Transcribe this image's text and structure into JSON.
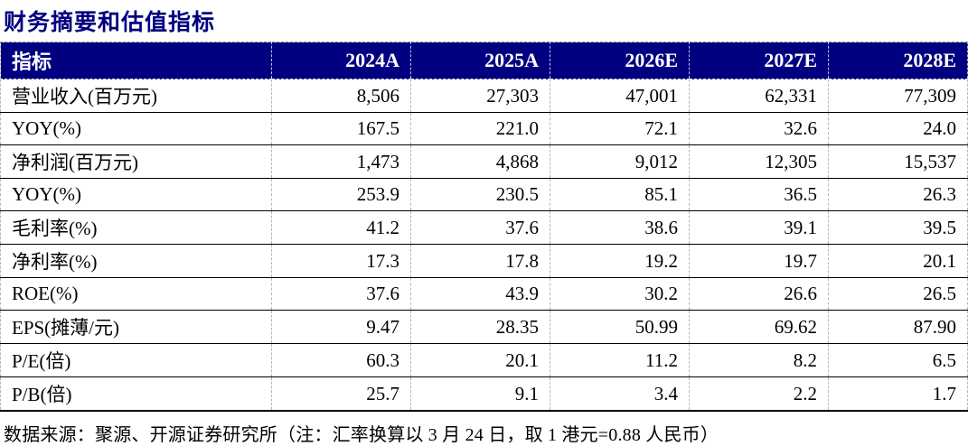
{
  "title": "财务摘要和估值指标",
  "colors": {
    "header_bg": "#000080",
    "title": "#000080",
    "row_border": "#000000",
    "col_divider": "#b5b5b5"
  },
  "table": {
    "columns": [
      "指标",
      "2024A",
      "2025A",
      "2026E",
      "2027E",
      "2028E"
    ],
    "rows": [
      {
        "label": "营业收入(百万元)",
        "values": [
          "8,506",
          "27,303",
          "47,001",
          "62,331",
          "77,309"
        ]
      },
      {
        "label": "YOY(%)",
        "values": [
          "167.5",
          "221.0",
          "72.1",
          "32.6",
          "24.0"
        ]
      },
      {
        "label": "净利润(百万元)",
        "values": [
          "1,473",
          "4,868",
          "9,012",
          "12,305",
          "15,537"
        ]
      },
      {
        "label": "YOY(%)",
        "values": [
          "253.9",
          "230.5",
          "85.1",
          "36.5",
          "26.3"
        ]
      },
      {
        "label": "毛利率(%)",
        "values": [
          "41.2",
          "37.6",
          "38.6",
          "39.1",
          "39.5"
        ]
      },
      {
        "label": "净利率(%)",
        "values": [
          "17.3",
          "17.8",
          "19.2",
          "19.7",
          "20.1"
        ]
      },
      {
        "label": "ROE(%)",
        "values": [
          "37.6",
          "43.9",
          "30.2",
          "26.6",
          "26.5"
        ]
      },
      {
        "label": "EPS(摊薄/元)",
        "values": [
          "9.47",
          "28.35",
          "50.99",
          "69.62",
          "87.90"
        ]
      },
      {
        "label": "P/E(倍)",
        "values": [
          "60.3",
          "20.1",
          "11.2",
          "8.2",
          "6.5"
        ]
      },
      {
        "label": "P/B(倍)",
        "values": [
          "25.7",
          "9.1",
          "3.4",
          "2.2",
          "1.7"
        ]
      }
    ]
  },
  "footer": "数据来源：聚源、开源证券研究所（注：汇率换算以 3 月 24 日，取 1 港元=0.88 人民币）"
}
